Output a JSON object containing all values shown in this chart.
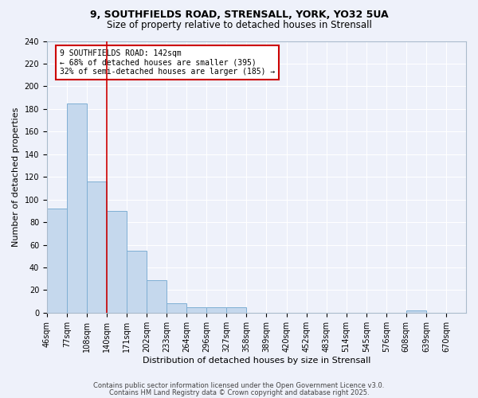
{
  "title_line1": "9, SOUTHFIELDS ROAD, STRENSALL, YORK, YO32 5UA",
  "title_line2": "Size of property relative to detached houses in Strensall",
  "xlabel": "Distribution of detached houses by size in Strensall",
  "ylabel": "Number of detached properties",
  "bar_values": [
    92,
    185,
    116,
    90,
    55,
    29,
    8,
    5,
    5,
    5,
    0,
    0,
    0,
    0,
    0,
    0,
    0,
    0,
    2,
    0,
    0
  ],
  "categories": [
    "46sqm",
    "77sqm",
    "108sqm",
    "140sqm",
    "171sqm",
    "202sqm",
    "233sqm",
    "264sqm",
    "296sqm",
    "327sqm",
    "358sqm",
    "389sqm",
    "420sqm",
    "452sqm",
    "483sqm",
    "514sqm",
    "545sqm",
    "576sqm",
    "608sqm",
    "639sqm",
    "670sqm"
  ],
  "bar_color": "#c5d8ed",
  "bar_edge_color": "#7fafd4",
  "red_line_index": 3,
  "annotation_text": "9 SOUTHFIELDS ROAD: 142sqm\n← 68% of detached houses are smaller (395)\n32% of semi-detached houses are larger (185) →",
  "annotation_box_facecolor": "#ffffff",
  "annotation_box_edgecolor": "#cc0000",
  "ylim": [
    0,
    240
  ],
  "yticks": [
    0,
    20,
    40,
    60,
    80,
    100,
    120,
    140,
    160,
    180,
    200,
    220,
    240
  ],
  "background_color": "#eef1fa",
  "grid_color": "#ffffff",
  "footer_line1": "Contains HM Land Registry data © Crown copyright and database right 2025.",
  "footer_line2": "Contains public sector information licensed under the Open Government Licence v3.0.",
  "title_fontsize": 9,
  "subtitle_fontsize": 8.5,
  "axis_label_fontsize": 8,
  "tick_fontsize": 7,
  "annotation_fontsize": 7,
  "footer_fontsize": 6
}
